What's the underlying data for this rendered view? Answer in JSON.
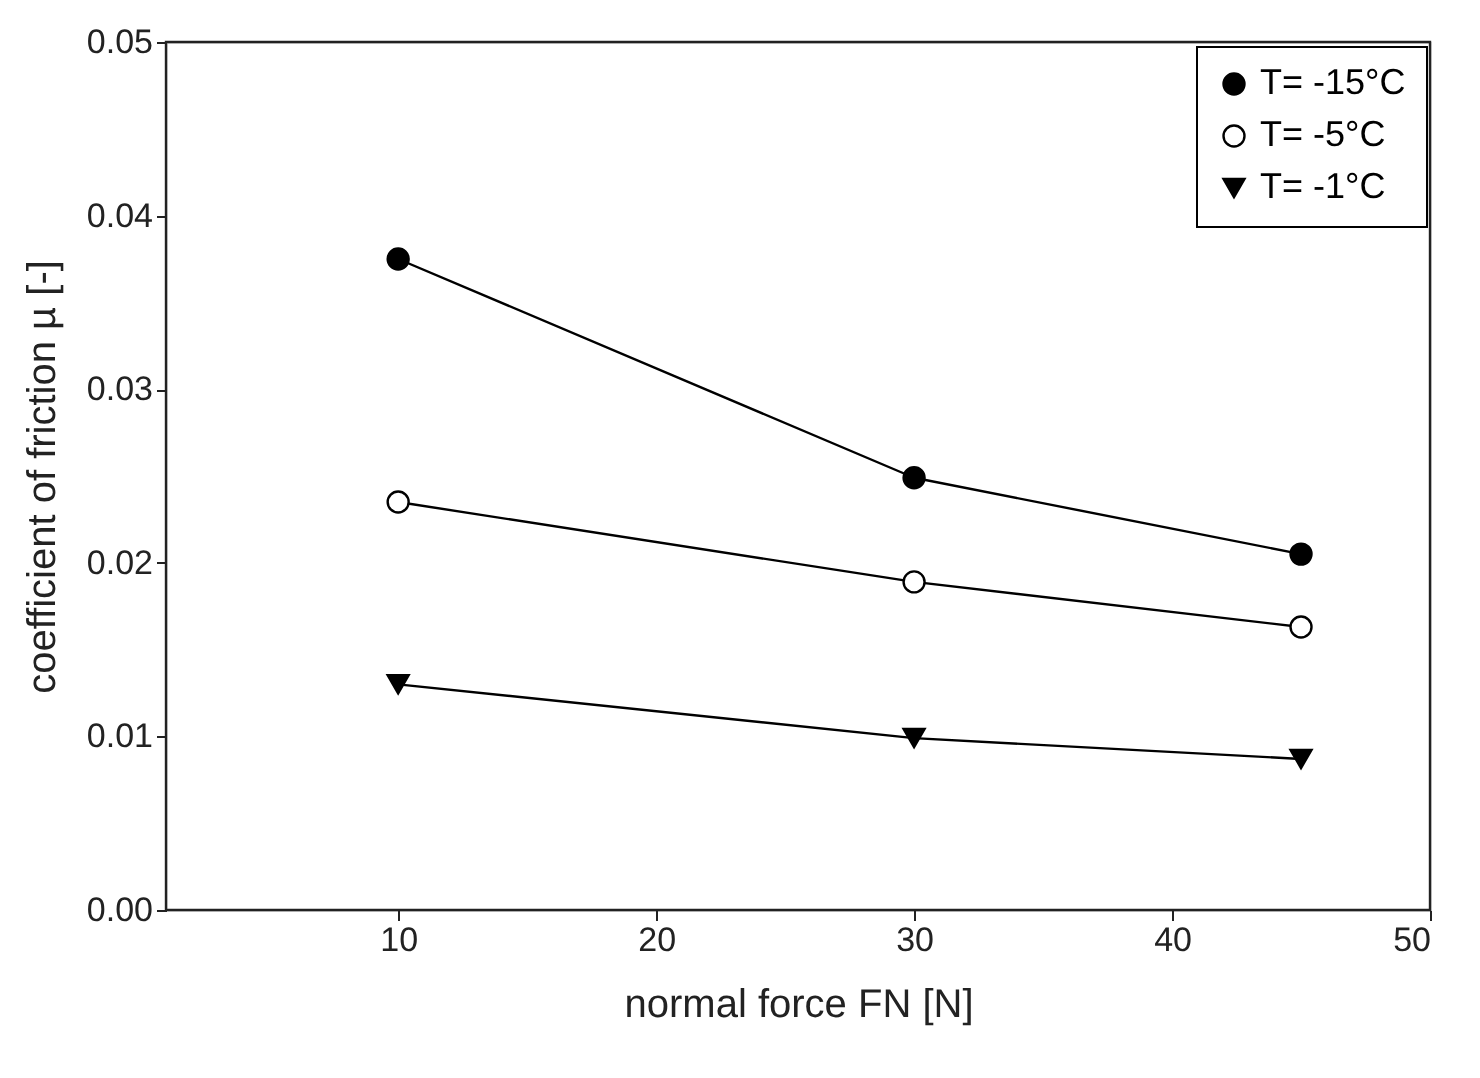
{
  "chart_data": {
    "type": "line",
    "xlabel": "normal force FN [N]",
    "ylabel": "coefficient of friction µ [-]",
    "xlim": [
      1,
      50
    ],
    "xticks": [
      10,
      20,
      30,
      40,
      50
    ],
    "ylim": [
      0,
      0.05
    ],
    "yticks": [
      {
        "value": 0,
        "label": "0.00"
      },
      {
        "value": 0.01,
        "label": "0.01"
      },
      {
        "value": 0.02,
        "label": "0.02"
      },
      {
        "value": 0.03,
        "label": "0.03"
      },
      {
        "value": 0.04,
        "label": "0.04"
      },
      {
        "value": 0.05,
        "label": "0.05"
      }
    ],
    "x": [
      10,
      30,
      45
    ],
    "grid": false,
    "legend": "top right",
    "series": [
      {
        "name": "T= -15°C",
        "color": "#000000",
        "marker": "circle",
        "values": [
          0.0375,
          0.0249,
          0.0205
        ]
      },
      {
        "name": "T= -5°C",
        "color": "#ffffff",
        "marker": "circle",
        "values": [
          0.0235,
          0.0189,
          0.0163
        ]
      },
      {
        "name": "T= -1°C",
        "color": "#000000",
        "marker": "triangle",
        "values": [
          0.013,
          0.0099,
          0.0087
        ]
      }
    ]
  }
}
